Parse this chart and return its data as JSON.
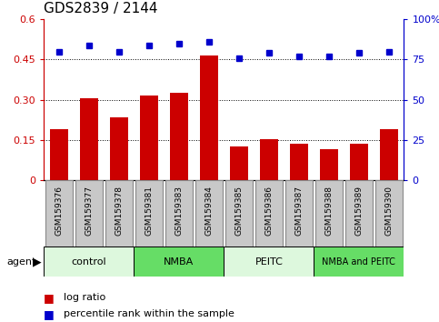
{
  "title": "GDS2839 / 2144",
  "samples": [
    "GSM159376",
    "GSM159377",
    "GSM159378",
    "GSM159381",
    "GSM159383",
    "GSM159384",
    "GSM159385",
    "GSM159386",
    "GSM159387",
    "GSM159388",
    "GSM159389",
    "GSM159390"
  ],
  "log_ratio": [
    0.19,
    0.305,
    0.235,
    0.315,
    0.325,
    0.465,
    0.125,
    0.155,
    0.135,
    0.115,
    0.135,
    0.19
  ],
  "percentile_rank": [
    80,
    84,
    80,
    84,
    85,
    86,
    76,
    79,
    77,
    77,
    79,
    80
  ],
  "groups": [
    {
      "label": "control",
      "start": 0,
      "end": 3,
      "color": "#ddf8dd",
      "text_size": 8
    },
    {
      "label": "NMBA",
      "start": 3,
      "end": 6,
      "color": "#66dd66",
      "text_size": 8
    },
    {
      "label": "PEITC",
      "start": 6,
      "end": 9,
      "color": "#ddf8dd",
      "text_size": 8
    },
    {
      "label": "NMBA and PEITC",
      "start": 9,
      "end": 12,
      "color": "#66dd66",
      "text_size": 7
    }
  ],
  "bar_color": "#cc0000",
  "dot_color": "#0000cc",
  "yticks_left": [
    0,
    0.15,
    0.3,
    0.45,
    0.6
  ],
  "ytick_labels_left": [
    "0",
    "0.15",
    "0.30",
    "0.45",
    "0.6"
  ],
  "yticks_right": [
    0,
    25,
    50,
    75,
    100
  ],
  "ytick_labels_right": [
    "0",
    "25",
    "50",
    "75",
    "100%"
  ],
  "ylim_left": [
    0,
    0.6
  ],
  "ylim_right": [
    0,
    100
  ],
  "bar_width": 0.6,
  "legend_red_label": "log ratio",
  "legend_blue_label": "percentile rank within the sample",
  "agent_label": "agent",
  "xticklabel_fontsize": 6.5,
  "title_fontsize": 11,
  "label_fontsize": 8,
  "sample_box_color": "#c8c8c8",
  "sample_box_edge": "#888888",
  "grid_color": "black",
  "grid_lw": 0.7,
  "grid_style": ":"
}
